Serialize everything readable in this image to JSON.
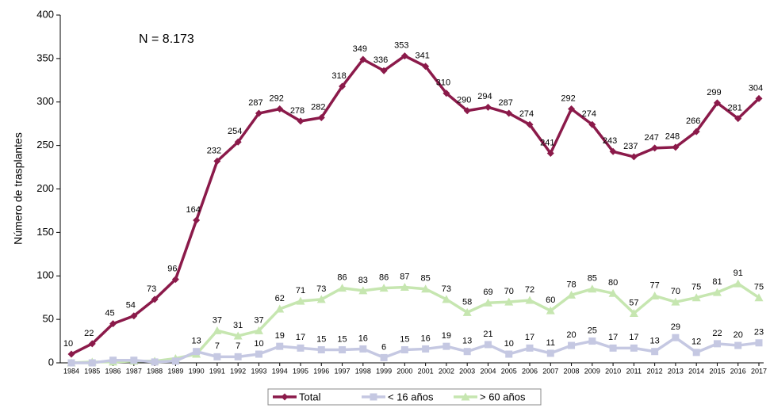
{
  "chart_data": {
    "type": "line",
    "y_label": "Número de trasplantes",
    "annotation": "N = 8.173",
    "categories": [
      "1984",
      "1985",
      "1986",
      "1987",
      "1988",
      "1989",
      "1990",
      "1991",
      "1992",
      "1993",
      "1994",
      "1995",
      "1996",
      "1997",
      "1998",
      "1999",
      "2000",
      "2001",
      "2002",
      "2003",
      "2004",
      "2005",
      "2006",
      "2007",
      "2008",
      "2009",
      "2010",
      "2011",
      "2012",
      "2013",
      "2014",
      "2015",
      "2016",
      "2017"
    ],
    "series": [
      {
        "name": "Total",
        "color": "#8b1a4a",
        "marker": "diamond",
        "values": [
          10,
          22,
          45,
          54,
          73,
          96,
          164,
          232,
          254,
          287,
          292,
          278,
          282,
          318,
          349,
          336,
          353,
          341,
          310,
          290,
          294,
          287,
          274,
          241,
          292,
          274,
          243,
          237,
          247,
          248,
          266,
          299,
          281,
          304
        ]
      },
      {
        "name": "< 16 años",
        "color": "#c5c8e2",
        "marker": "square",
        "values": [
          0,
          0,
          3,
          3,
          1,
          2,
          13,
          7,
          7,
          10,
          19,
          17,
          15,
          15,
          16,
          6,
          15,
          16,
          19,
          13,
          21,
          10,
          17,
          11,
          20,
          25,
          17,
          17,
          13,
          29,
          12,
          22,
          20,
          23
        ],
        "value_labels": [
          null,
          null,
          null,
          null,
          null,
          null,
          "13",
          "7",
          "7",
          "10",
          "19",
          "17",
          "15",
          "15",
          "16",
          "6",
          "15",
          "16",
          "19",
          "13",
          "21",
          "10",
          "17",
          "11",
          "20",
          "25",
          "17",
          "17",
          "13",
          "29",
          "12",
          "22",
          "20",
          "23"
        ]
      },
      {
        "name": "> 60 años",
        "color": "#c6e6b0",
        "marker": "triangle",
        "values": [
          0,
          1,
          1,
          2,
          2,
          5,
          10,
          37,
          31,
          37,
          62,
          71,
          73,
          86,
          83,
          86,
          87,
          85,
          73,
          58,
          69,
          70,
          72,
          60,
          78,
          85,
          80,
          57,
          77,
          70,
          75,
          81,
          91,
          75
        ],
        "value_labels": [
          null,
          null,
          null,
          null,
          null,
          null,
          null,
          "37",
          "31",
          "37",
          "62",
          "71",
          "73",
          "86",
          "83",
          "86",
          "87",
          "85",
          "73",
          "58",
          "69",
          "70",
          "72",
          "60",
          "78",
          "85",
          "80",
          "57",
          "77",
          "70",
          "75",
          "81",
          "91",
          "75"
        ]
      }
    ],
    "ylim": [
      0,
      400
    ],
    "yticks": [
      0,
      50,
      100,
      150,
      200,
      250,
      300,
      350,
      400
    ],
    "legend": "bottom"
  }
}
